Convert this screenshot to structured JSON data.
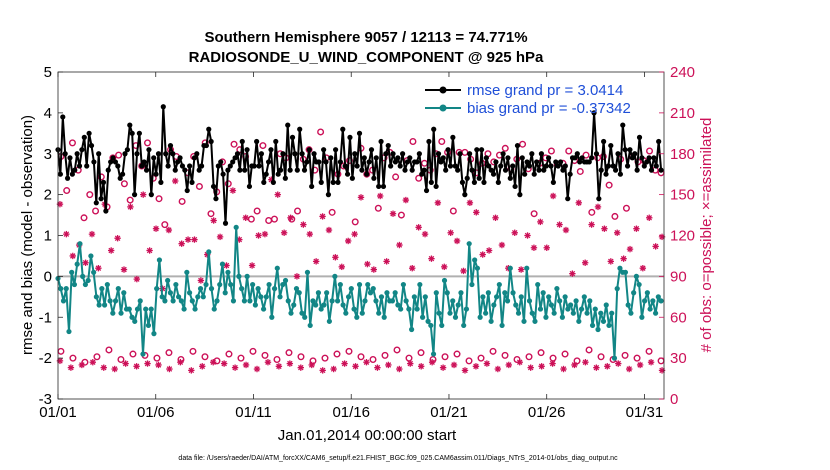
{
  "chart_data": {
    "type": "line",
    "title_line1": "Southern Hemisphere 9057 / 12113 = 74.771%",
    "title_line2": "RADIOSONDE_U_WIND_COMPONENT @ 925 hPa",
    "xlabel": "Jan.01,2014 00:00:00 start",
    "ylabel_left": "rmse and bias (model - observation)",
    "ylabel_right": "# of obs: o=possible; ×=assimilated",
    "footnote": "data file: /Users/raeder/DAI/ATM_forcXX/CAM6_setup/f.e21.FHIST_BGC.f09_025.CAM6assim.011/Diags_NTrS_2014-01/obs_diag_output.nc",
    "x_ticks": [
      "01/01",
      "01/06",
      "01/11",
      "01/16",
      "01/21",
      "01/26",
      "01/31"
    ],
    "x_tick_days": [
      1,
      6,
      11,
      16,
      21,
      26,
      31
    ],
    "xlim": [
      1,
      32
    ],
    "ylim_left": [
      -3,
      5
    ],
    "y_ticks_left": [
      "-3",
      "-2",
      "-1",
      "0",
      "1",
      "2",
      "3",
      "4",
      "5"
    ],
    "ylim_right": [
      0,
      240
    ],
    "y_ticks_right": [
      "0",
      "30",
      "60",
      "90",
      "120",
      "150",
      "180",
      "210",
      "240"
    ],
    "colors": {
      "rmse": "#000000",
      "bias": "#128686",
      "obs": "#cc1158",
      "zero_line": "#b0b0b0",
      "legend_text": "#1f4fd8"
    },
    "series": [
      {
        "name": "rmse grand pr = 3.0414",
        "key": "rmse",
        "values": [
          3.1,
          2.5,
          3.9,
          3.0,
          2.4,
          2.9,
          2.5,
          2.6,
          3.0,
          2.7,
          3.1,
          3.4,
          2.7,
          3.5,
          3.2,
          2.8,
          1.8,
          3.0,
          1.9,
          2.3,
          1.6,
          2.6,
          2.8,
          2.9,
          2.8,
          2.7,
          2.4,
          2.5,
          3.0,
          3.1,
          3.7,
          3.5,
          2.0,
          3.0,
          3.5,
          2.7,
          2.8,
          2.6,
          3.1,
          2.0,
          2.9,
          2.5,
          3.0,
          2.3,
          4.15,
          3.0,
          2.7,
          3.2,
          3.0,
          2.6,
          2.8,
          2.9,
          2.7,
          2.6,
          2.1,
          2.7,
          2.3,
          2.9,
          3.0,
          2.6,
          2.7,
          3.2,
          3.2,
          3.6,
          3.3,
          2.2,
          1.9,
          2.7,
          2.8,
          2.5,
          1.3,
          2.6,
          2.7,
          2.8,
          2.9,
          3.0,
          2.6,
          3.3,
          2.6,
          3.1,
          2.2,
          2.7,
          2.7,
          3.3,
          2.7,
          3.0,
          2.3,
          2.5,
          2.8,
          3.1,
          2.3,
          3.3,
          2.5,
          2.6,
          3.0,
          2.4,
          3.7,
          2.6,
          3.4,
          3.0,
          2.6,
          3.6,
          3.0,
          2.6,
          2.8,
          3.1,
          2.2,
          3.0,
          2.8,
          2.8,
          2.3,
          3.1,
          2.8,
          2.0,
          2.9,
          2.3,
          3.1,
          2.3,
          2.8,
          3.6,
          2.7,
          2.5,
          3.4,
          2.4,
          3.0,
          2.7,
          3.5,
          2.6,
          2.9,
          2.5,
          2.8,
          3.1,
          2.4,
          2.9,
          2.2,
          3.3,
          2.2,
          3.0,
          3.2,
          2.7,
          3.0,
          2.8,
          2.9,
          2.7,
          3.0,
          2.6,
          2.8,
          2.9,
          2.6,
          2.8,
          2.8,
          3.0,
          2.5,
          2.6,
          2.1,
          3.3,
          2.3,
          3.6,
          2.2,
          3.0,
          2.8,
          2.9,
          2.6,
          3.1,
          2.7,
          3.4,
          2.7,
          2.6,
          3.0,
          2.3,
          2.0,
          2.4,
          3.0,
          2.6,
          2.3,
          3.1,
          2.4,
          3.1,
          2.3,
          2.9,
          2.7,
          2.6,
          2.5,
          2.8,
          2.3,
          2.7,
          3.0,
          2.6,
          2.9,
          2.4,
          2.7,
          2.2,
          3.2,
          2.0,
          2.9,
          2.5,
          2.8,
          2.7,
          3.0,
          2.5,
          2.8,
          2.6,
          3.0,
          2.6,
          2.7,
          2.9,
          2.7,
          2.3,
          2.8,
          2.7,
          2.8,
          2.6,
          2.7,
          1.9,
          2.5,
          2.9,
          2.9,
          3.0,
          2.8,
          2.9,
          2.8,
          2.8,
          2.8,
          2.9,
          4.0,
          3.0,
          1.9,
          2.6,
          3.3,
          2.5,
          2.7,
          3.2,
          2.7,
          2.6,
          3.0,
          2.5,
          3.7,
          3.1,
          2.7,
          3.1,
          2.9,
          3.0,
          2.6,
          3.4,
          2.9,
          2.7,
          2.8,
          2.9,
          2.6,
          2.9,
          2.7,
          3.3,
          2.6
        ]
      },
      {
        "name": "bias grand pr = -0.37342",
        "key": "bias",
        "values": [
          -0.05,
          -0.3,
          -0.6,
          -0.3,
          -1.35,
          0.1,
          -0.2,
          0.3,
          0.8,
          0.0,
          -0.2,
          -0.1,
          0.5,
          0.1,
          -0.5,
          -0.7,
          -0.3,
          -0.7,
          -0.2,
          -0.6,
          -0.9,
          -0.6,
          -0.3,
          -0.9,
          -0.4,
          -0.8,
          -0.8,
          -1.0,
          -1.1,
          -0.8,
          -0.6,
          -1.9,
          -0.8,
          -1.2,
          -0.8,
          -1.4,
          -0.3,
          0.4,
          -0.5,
          -0.6,
          -0.1,
          -0.4,
          -0.6,
          -0.2,
          -0.5,
          -0.6,
          -0.8,
          0.1,
          -0.4,
          -0.6,
          -0.8,
          -0.5,
          -0.3,
          -0.5,
          -0.2,
          0.6,
          -0.3,
          -0.8,
          -0.6,
          -0.2,
          0.3,
          -0.4,
          0.1,
          -0.2,
          -0.6,
          1.2,
          0.0,
          -0.3,
          -0.6,
          0.0,
          -0.6,
          -0.2,
          -0.7,
          -0.3,
          -0.5,
          -0.8,
          -0.5,
          -0.2,
          -1.0,
          -0.3,
          0.2,
          -0.5,
          -0.2,
          -0.1,
          -0.6,
          -0.9,
          -0.7,
          -0.3,
          -0.4,
          -0.9,
          -1.0,
          0.1,
          -1.2,
          -0.6,
          -0.7,
          -0.4,
          -0.8,
          -0.7,
          -0.4,
          -1.1,
          -0.6,
          0.0,
          -0.6,
          -0.2,
          -0.7,
          -0.9,
          -0.5,
          -0.3,
          -0.8,
          -1.0,
          -0.2,
          -0.9,
          -0.6,
          -0.2,
          -0.4,
          -0.3,
          -0.6,
          -0.9,
          -0.5,
          -1.0,
          -0.4,
          -0.6,
          -0.6,
          -0.4,
          -0.7,
          -0.8,
          -0.2,
          -0.6,
          -0.8,
          -1.3,
          -0.5,
          -0.8,
          -0.2,
          -1.0,
          -0.5,
          -1.1,
          -1.2,
          -1.9,
          -0.4,
          -0.9,
          -1.2,
          -0.1,
          -0.4,
          -0.9,
          -0.6,
          -1.0,
          -0.7,
          -0.4,
          -1.2,
          -0.8,
          0.8,
          -0.2,
          0.4,
          0.2,
          -1.0,
          -0.5,
          -0.9,
          -0.4,
          -1.1,
          -0.7,
          -0.5,
          -0.2,
          -1.2,
          -0.4,
          -0.6,
          0.2,
          -0.4,
          -0.7,
          -0.9,
          -0.5,
          -1.1,
          0.2,
          -0.6,
          -0.9,
          -1.1,
          -0.2,
          -0.8,
          -0.4,
          -1.0,
          -0.5,
          -0.7,
          -0.9,
          -0.3,
          -0.6,
          -1.0,
          -0.5,
          -0.8,
          -0.7,
          -0.9,
          -0.6,
          -1.1,
          -0.8,
          -0.5,
          -0.9,
          -0.6,
          -1.2,
          -0.8,
          -1.3,
          -0.9,
          -1.1,
          -0.7,
          -1.2,
          -0.9,
          -2.0,
          -0.3,
          0.2,
          0.1,
          0.1,
          -0.7,
          -0.9,
          -0.4,
          0.0,
          -0.2,
          -1.0,
          -0.6,
          -0.4,
          -0.8,
          -0.6,
          -0.9,
          -0.5,
          -0.6
        ]
      },
      {
        "name": "possible",
        "key": "possible",
        "axis": "right",
        "marker": "o",
        "values": [
          178,
          153,
          188,
          168,
          133,
          150,
          138,
          163,
          141,
          177,
          179,
          158,
          146,
          186,
          171,
          188,
          162,
          147,
          128,
          183,
          178,
          145,
          166,
          178,
          156,
          188,
          136,
          152,
          174,
          158,
          187,
          183,
          178,
          132,
          138,
          186,
          131,
          132,
          180,
          177,
          132,
          138,
          176,
          183,
          168,
          196,
          177,
          137,
          165,
          171,
          175,
          130,
          184,
          165,
          168,
          140,
          177,
          181,
          163,
          135,
          175,
          189,
          162,
          173,
          168,
          180,
          189,
          181,
          138,
          181,
          181,
          176,
          166,
          173,
          180,
          174,
          179,
          184,
          169,
          176,
          187,
          169,
          136,
          173,
          177,
          182,
          172,
          173,
          182,
          175,
          167,
          179,
          137,
          177,
          178,
          157,
          134,
          176,
          140,
          178,
          174,
          175,
          182,
          168,
          166
        ]
      },
      {
        "name": "assimilated",
        "key": "assimilated",
        "axis": "right",
        "marker": "x",
        "values": [
          143,
          121,
          105,
          113,
          100,
          121,
          96,
          143,
          109,
          118,
          95,
          141,
          88,
          150,
          109,
          125,
          81,
          124,
          160,
          114,
          117,
          117,
          87,
          106,
          131,
          119,
          98,
          153,
          117,
          133,
          98,
          120,
          121,
          161,
          150,
          122,
          133,
          90,
          128,
          121,
          101,
          134,
          124,
          104,
          97,
          116,
          121,
          148,
          99,
          95,
          149,
          101,
          136,
          113,
          146,
          96,
          126,
          121,
          103,
          144,
          97,
          122,
          116,
          94,
          144,
          137,
          106,
          109,
          133,
          113,
          96,
          122,
          95,
          120,
          111,
          130,
          111,
          149,
          128,
          124,
          92,
          144,
          100,
          128,
          141,
          125,
          101,
          122,
          103,
          110,
          125,
          96,
          133,
          112,
          119
        ]
      }
    ],
    "cluster_values": {
      "possible_low": [
        35,
        30,
        27,
        31,
        36,
        29,
        33,
        32,
        30,
        34,
        29,
        35,
        31,
        28,
        33,
        30,
        35,
        32,
        29,
        34,
        31,
        28,
        30,
        33,
        35,
        31,
        29,
        32,
        36,
        30,
        34,
        29,
        31,
        33,
        28,
        30,
        35,
        32,
        29,
        31,
        34,
        30,
        33,
        28,
        36,
        31,
        29,
        32,
        30,
        35,
        28
      ],
      "assimilated_low": [
        28,
        23,
        25,
        27,
        23,
        22,
        26,
        24,
        26,
        25,
        22,
        27,
        21,
        24,
        27,
        26,
        23,
        25,
        22,
        27,
        24,
        26,
        23,
        25,
        21,
        22,
        26,
        24,
        27,
        23,
        25,
        22,
        26,
        24,
        27,
        23,
        25,
        21,
        24,
        26,
        22,
        25,
        27,
        23,
        24,
        26,
        22,
        25,
        27,
        23,
        24,
        26,
        22,
        25,
        27,
        21
      ]
    },
    "legend": {
      "rmse_label": "rmse grand pr = 3.0414",
      "bias_label": "bias grand pr = -0.37342"
    }
  }
}
